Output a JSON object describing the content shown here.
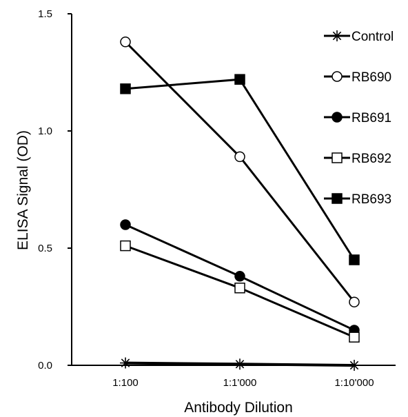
{
  "chart_data": {
    "type": "line",
    "title": "",
    "xlabel": "Antibody Dilution",
    "ylabel": "ELISA Signal (OD)",
    "categories": [
      "1:100",
      "1:1'000",
      "1:10'000"
    ],
    "ylim": [
      0,
      1.5
    ],
    "yticks": [
      0.0,
      0.5,
      1.0,
      1.5
    ],
    "ytick_labels": [
      "0.0",
      "0.5",
      "1.0",
      "1.5"
    ],
    "grid": false,
    "legend": "right",
    "series": [
      {
        "name": "Control",
        "marker": "asterisk",
        "values": [
          0.01,
          0.005,
          0.0
        ]
      },
      {
        "name": "RB690",
        "marker": "circle-open",
        "values": [
          1.38,
          0.89,
          0.27
        ]
      },
      {
        "name": "RB691",
        "marker": "circle-filled",
        "values": [
          0.6,
          0.38,
          0.15
        ]
      },
      {
        "name": "RB692",
        "marker": "square-open",
        "values": [
          0.51,
          0.33,
          0.12
        ]
      },
      {
        "name": "RB693",
        "marker": "square-filled",
        "values": [
          1.18,
          1.22,
          0.45
        ]
      }
    ]
  }
}
